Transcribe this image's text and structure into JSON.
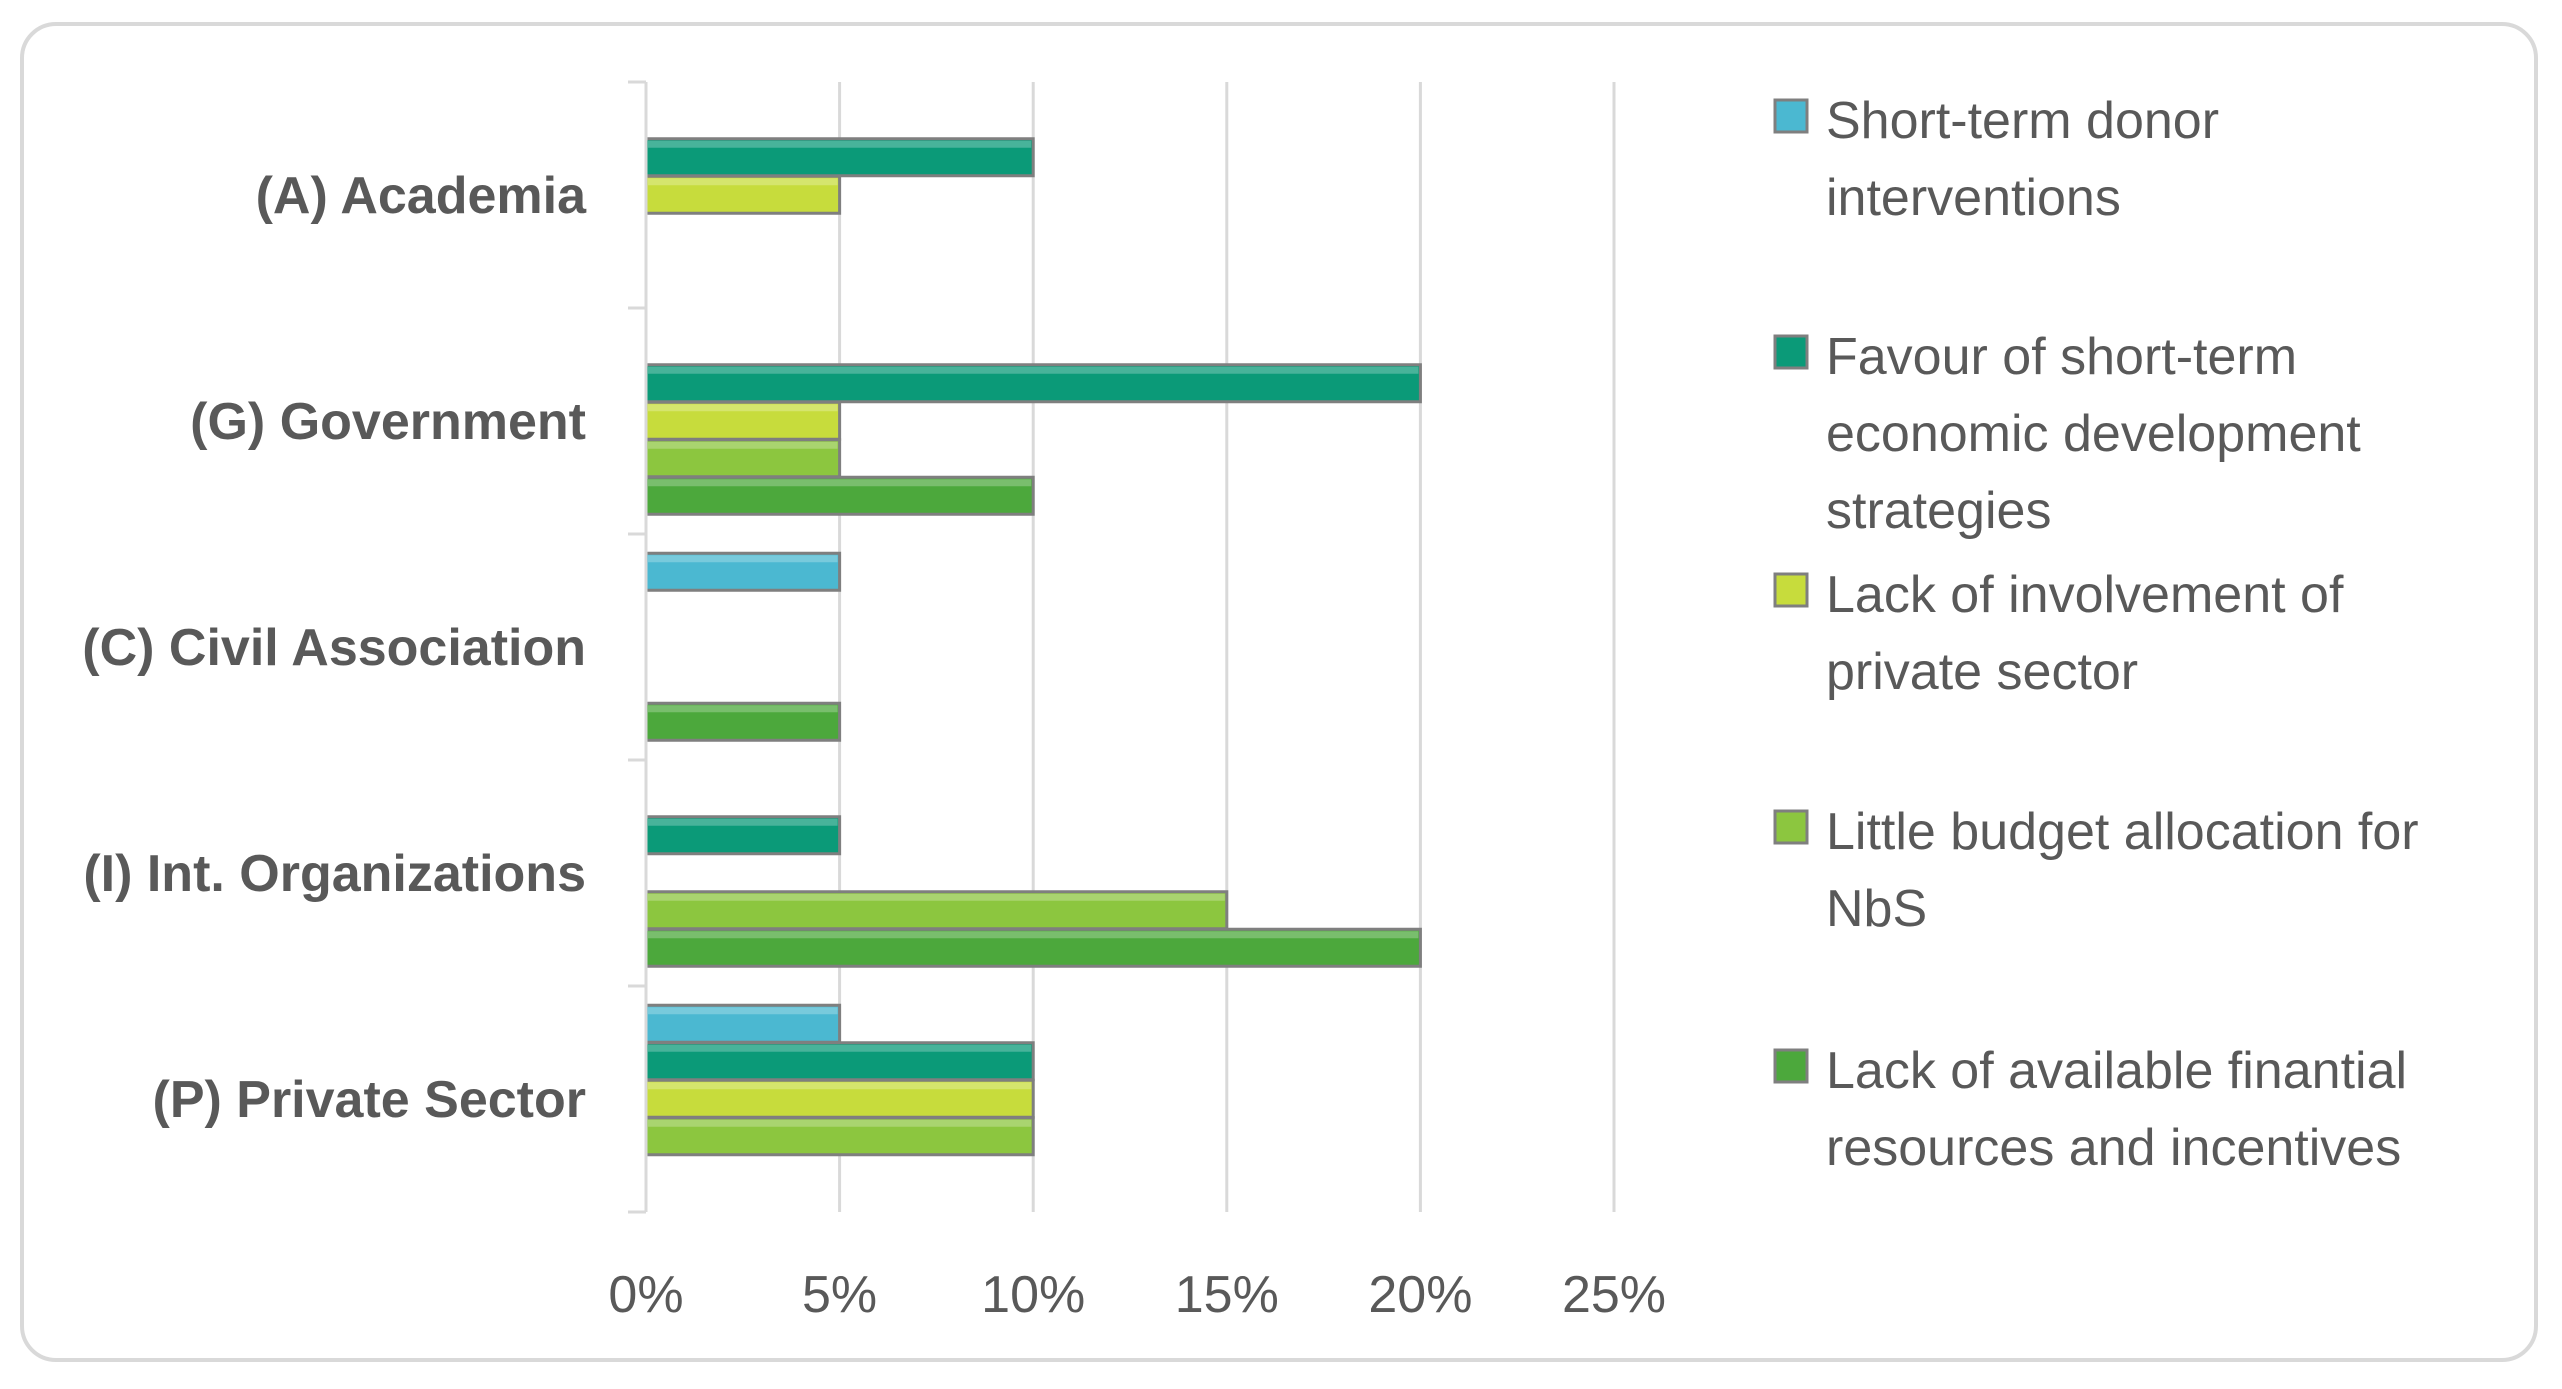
{
  "chart_data": {
    "type": "bar",
    "orientation": "horizontal",
    "title": "",
    "xlabel": "",
    "ylabel": "",
    "xlim": [
      0,
      25
    ],
    "x_ticks": [
      "0%",
      "5%",
      "10%",
      "15%",
      "20%",
      "25%"
    ],
    "grid": true,
    "legend_position": "right",
    "categories": [
      "(A) Academia",
      "(G) Government",
      "(C) Civil Association",
      "(I) Int. Organizations",
      "(P) Private Sector"
    ],
    "series": [
      {
        "name": "Short-term donor interventions",
        "color": "#4bb8d1",
        "legend_lines": [
          "Short-term donor",
          "interventions"
        ],
        "values": [
          0,
          0,
          5,
          0,
          5
        ]
      },
      {
        "name": "Favour of short-term economic development strategies",
        "color": "#0b9a78",
        "legend_lines": [
          "Favour of short-term",
          "economic development",
          "strategies"
        ],
        "values": [
          10,
          20,
          0,
          5,
          10
        ]
      },
      {
        "name": "Lack of involvement of private sector",
        "color": "#c7dc3c",
        "legend_lines": [
          "Lack of involvement of",
          "private sector"
        ],
        "values": [
          5,
          5,
          0,
          0,
          10
        ]
      },
      {
        "name": "Little budget allocation for NbS",
        "color": "#8cc63f",
        "legend_lines": [
          "Little budget allocation for",
          "NbS"
        ],
        "values": [
          0,
          5,
          0,
          15,
          10
        ]
      },
      {
        "name": "Lack of available finantial resources and incentives",
        "color": "#4ca83c",
        "legend_lines": [
          "Lack of available finantial",
          "resources and incentives"
        ],
        "values": [
          0,
          10,
          5,
          20,
          0
        ]
      }
    ]
  }
}
